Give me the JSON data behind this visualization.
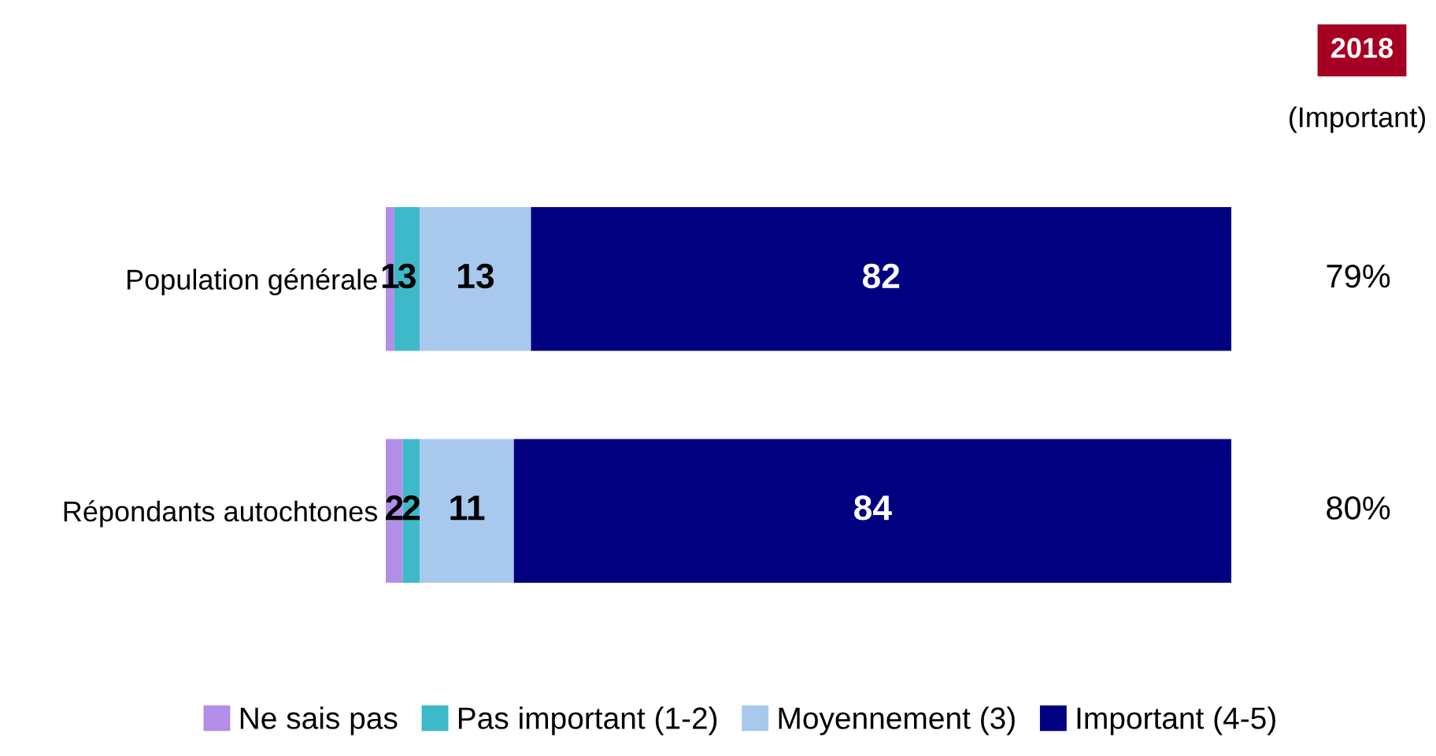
{
  "chart_data": {
    "type": "bar",
    "orientation": "horizontal",
    "stacked": true,
    "data_labels": true,
    "legend": "bottom",
    "grid": false,
    "categories": [
      "Population générale",
      "Répondants autochtones"
    ],
    "series": [
      {
        "name": "Ne sais pas",
        "color": "#b38ee8",
        "values": [
          1,
          2
        ]
      },
      {
        "name": "Pas important (1-2)",
        "color": "#3db9c9",
        "values": [
          3,
          2
        ]
      },
      {
        "name": "Moyennement (3)",
        "color": "#a8c8ee",
        "values": [
          13,
          11
        ]
      },
      {
        "name": "Important (4-5)",
        "color": "#000080",
        "values": [
          82,
          84
        ]
      }
    ],
    "annotations": [
      "2018",
      "(Important)",
      "79%",
      "80%"
    ]
  }
}
